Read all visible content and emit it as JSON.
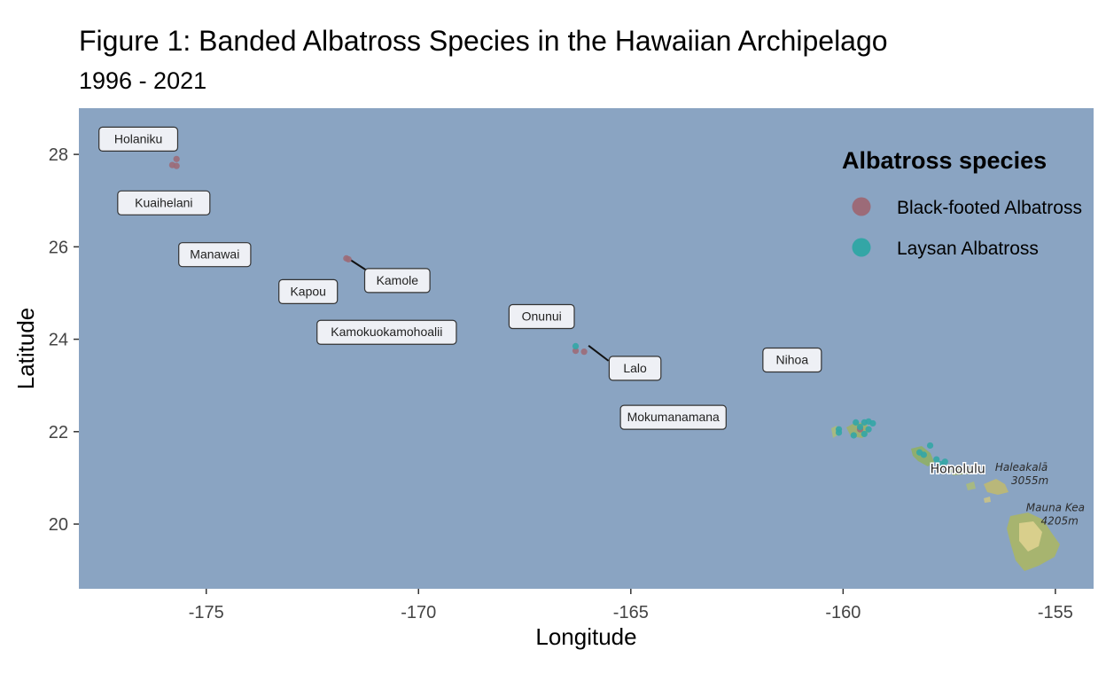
{
  "chart_data": {
    "type": "scatter",
    "title": "Figure 1: Banded Albatross Species in the Hawaiian Archipelago",
    "subtitle": "1996 - 2021",
    "xlabel": "Longitude",
    "ylabel": "Latitude",
    "xlim": [
      -178.0,
      -154.1
    ],
    "ylim": [
      18.6,
      29.0
    ],
    "x_ticks": [
      -175,
      -170,
      -165,
      -160,
      -155
    ],
    "x_tick_labels": [
      "-175",
      "-170",
      "-165",
      "-160",
      "-155"
    ],
    "y_ticks": [
      20,
      22,
      24,
      26,
      28
    ],
    "y_tick_labels": [
      "20",
      "22",
      "24",
      "26",
      "28"
    ],
    "grid": false,
    "legend_position": "top-right",
    "legend_title": "Albatross species",
    "colors": {
      "panel": "#8aa4c2",
      "black_footed": "#9c6b78",
      "laysan": "#33a6a6"
    },
    "series": [
      {
        "name": "Black-footed Albatross",
        "color": "#9c6b78",
        "points": [
          {
            "x": -175.8,
            "y": 27.77
          },
          {
            "x": -175.7,
            "y": 27.75
          },
          {
            "x": -175.7,
            "y": 27.9
          },
          {
            "x": -171.7,
            "y": 25.75
          },
          {
            "x": -171.65,
            "y": 25.73
          },
          {
            "x": -166.3,
            "y": 23.75
          },
          {
            "x": -166.1,
            "y": 23.73
          },
          {
            "x": -159.6,
            "y": 22.05
          }
        ]
      },
      {
        "name": "Laysan Albatross",
        "color": "#33a6a6",
        "points": [
          {
            "x": -177.4,
            "y": 28.25
          },
          {
            "x": -166.3,
            "y": 23.85
          },
          {
            "x": -160.1,
            "y": 22.05
          },
          {
            "x": -160.1,
            "y": 21.98
          },
          {
            "x": -159.7,
            "y": 22.2
          },
          {
            "x": -159.6,
            "y": 22.1
          },
          {
            "x": -159.5,
            "y": 22.2
          },
          {
            "x": -159.4,
            "y": 22.22
          },
          {
            "x": -159.3,
            "y": 22.18
          },
          {
            "x": -159.4,
            "y": 22.05
          },
          {
            "x": -159.75,
            "y": 21.92
          },
          {
            "x": -159.5,
            "y": 21.95
          },
          {
            "x": -158.2,
            "y": 21.55
          },
          {
            "x": -158.1,
            "y": 21.5
          },
          {
            "x": -157.95,
            "y": 21.7
          },
          {
            "x": -157.8,
            "y": 21.4
          },
          {
            "x": -157.7,
            "y": 21.3
          },
          {
            "x": -157.6,
            "y": 21.35
          }
        ]
      }
    ],
    "island_labels": [
      {
        "name": "Holaniku",
        "x": -176.6,
        "y": 28.34
      },
      {
        "name": "Kuaihelani",
        "x": -176.0,
        "y": 26.96
      },
      {
        "name": "Manawai",
        "x": -174.8,
        "y": 25.84
      },
      {
        "name": "Kamole",
        "x": -170.5,
        "y": 25.28,
        "point": {
          "x": -171.7,
          "y": 25.75
        }
      },
      {
        "name": "Kapou",
        "x": -172.6,
        "y": 25.04
      },
      {
        "name": "Kamokuokamohoalii",
        "x": -170.75,
        "y": 24.16
      },
      {
        "name": "Onunui",
        "x": -167.1,
        "y": 24.5
      },
      {
        "name": "Lalo",
        "x": -164.9,
        "y": 23.38,
        "point": {
          "x": -166.1,
          "y": 23.9
        }
      },
      {
        "name": "Nihoa",
        "x": -161.2,
        "y": 23.56
      },
      {
        "name": "Mokumanamana",
        "x": -164.0,
        "y": 22.32
      }
    ],
    "basemap_labels": [
      {
        "text": "Honolulu",
        "x": -157.3,
        "y": 21.1
      },
      {
        "text": "Haleakalā",
        "x": -155.8,
        "y": 21.15
      },
      {
        "text": "3055m",
        "x": -155.6,
        "y": 20.86
      },
      {
        "text": "Mauna Kea",
        "x": -155.0,
        "y": 20.28
      },
      {
        "text": "4205m",
        "x": -154.9,
        "y": 19.99
      }
    ]
  }
}
